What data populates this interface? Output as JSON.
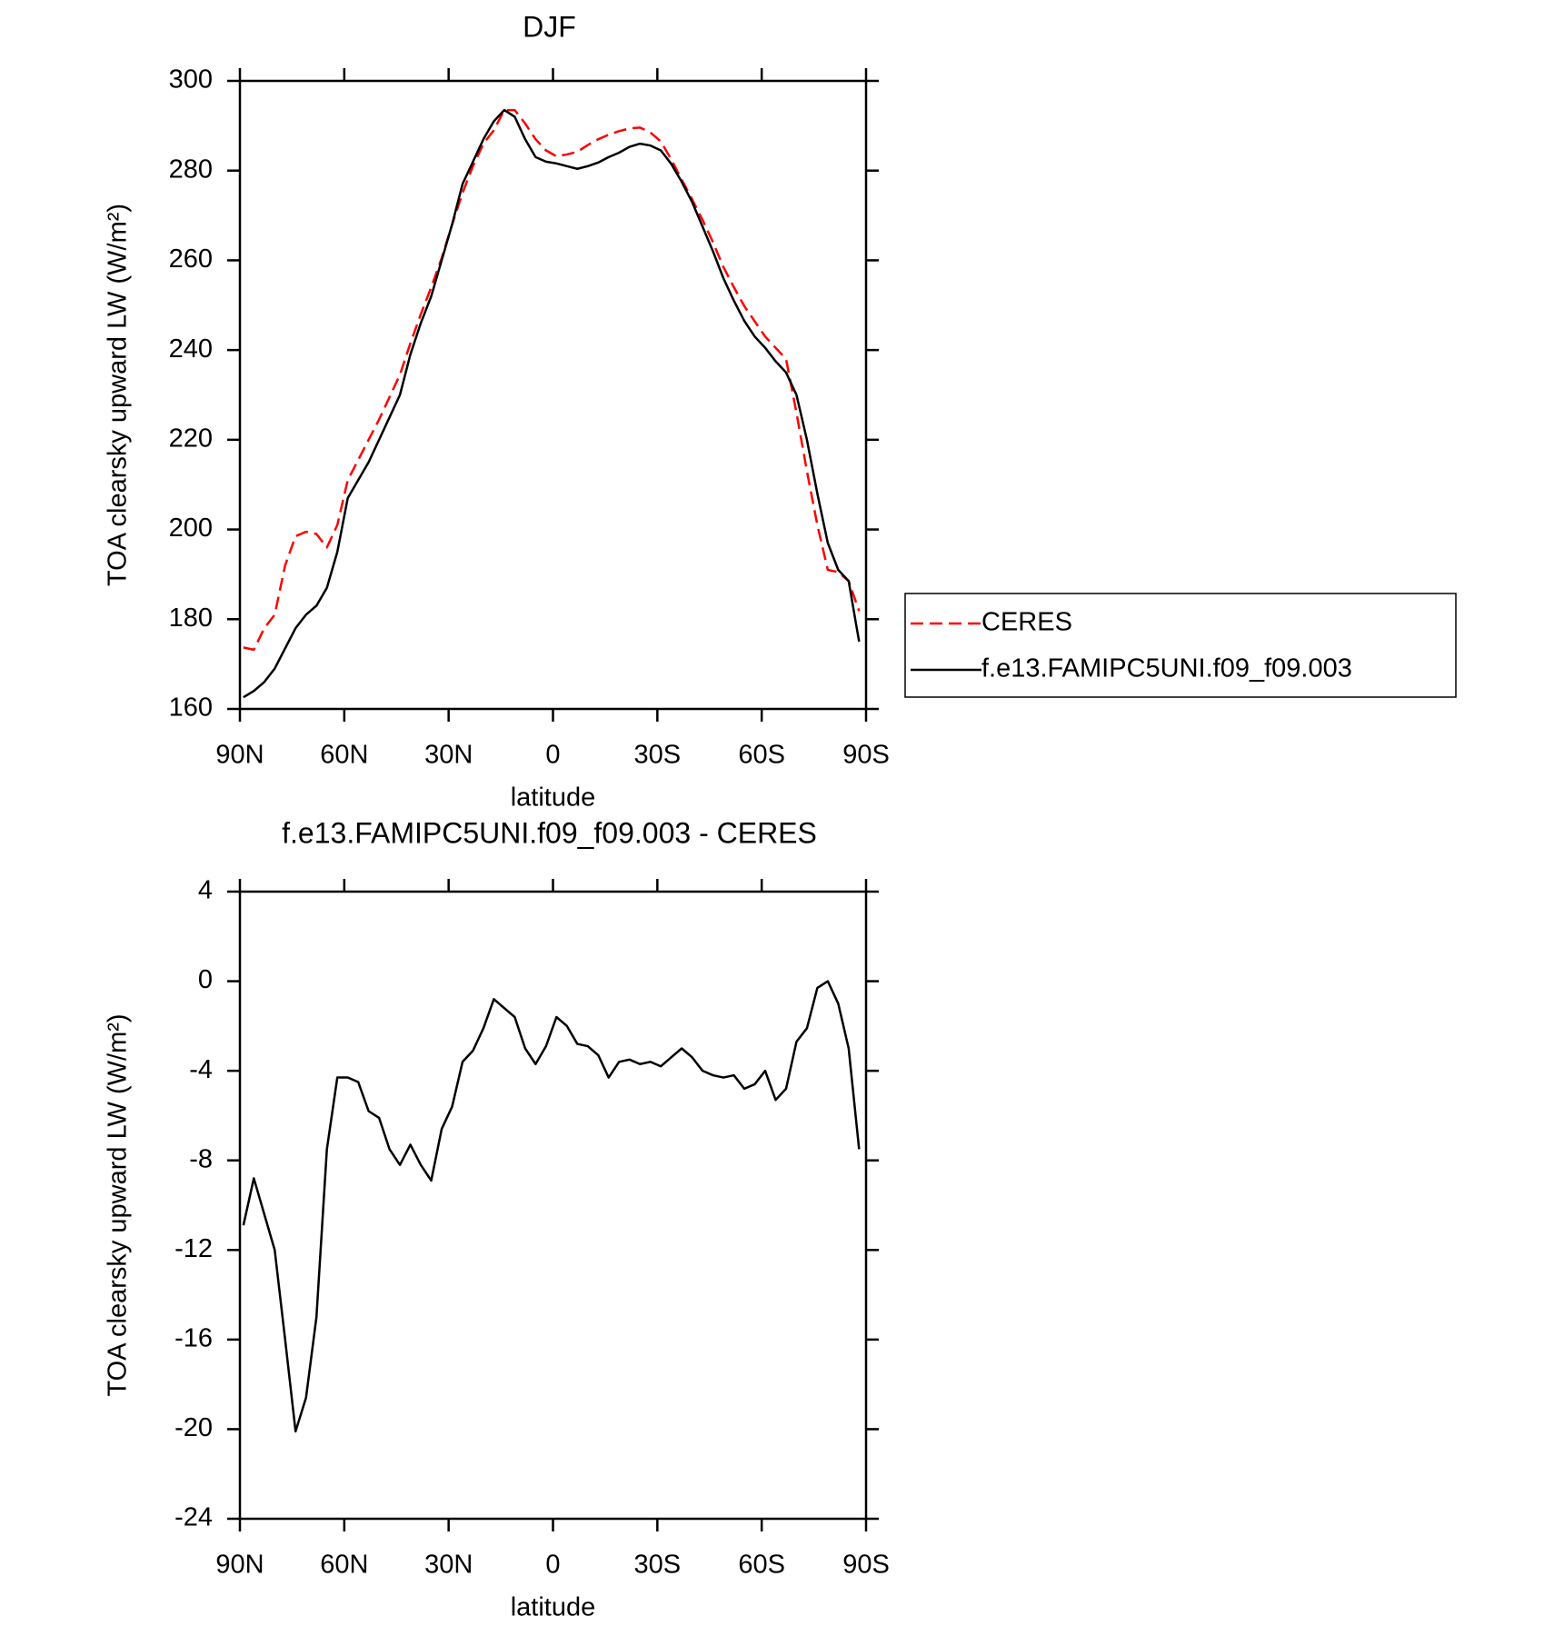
{
  "chart_data": [
    {
      "type": "line",
      "title": "DJF",
      "x_label": "latitude",
      "y_label": "TOA clearsky upward LW (W/m²)",
      "x": [
        89,
        86,
        83,
        80,
        77,
        74,
        71,
        68,
        65,
        62,
        59,
        56,
        53,
        50,
        47,
        44,
        41,
        38,
        35,
        32,
        29,
        26,
        23,
        20,
        17,
        14,
        11,
        8,
        5,
        2,
        -1,
        -4,
        -7,
        -10,
        -13,
        -16,
        -19,
        -22,
        -25,
        -28,
        -31,
        -34,
        -37,
        -40,
        -43,
        -46,
        -49,
        -52,
        -55,
        -58,
        -61,
        -64,
        -67,
        -70,
        -73,
        -76,
        -79,
        -82,
        -85,
        -88
      ],
      "xlim": [
        90,
        -90
      ],
      "xticks": [
        {
          "value": 90,
          "label": "90N"
        },
        {
          "value": 60,
          "label": "60N"
        },
        {
          "value": 30,
          "label": "30N"
        },
        0,
        {
          "value": -30,
          "label": "30S"
        },
        {
          "value": -60,
          "label": "60S"
        },
        {
          "value": -90,
          "label": "90S"
        }
      ],
      "ylim": [
        160,
        300
      ],
      "yticks": [
        160,
        180,
        200,
        220,
        240,
        260,
        280,
        300
      ],
      "legend": "outside-right",
      "series": [
        {
          "name": "CERES",
          "color": "#ff0000",
          "dash": "dashed",
          "values": [
            173.7,
            173.2,
            178,
            181,
            192,
            198.5,
            199.5,
            199,
            196,
            201,
            211,
            215.5,
            220,
            224.5,
            229.5,
            234.5,
            241.5,
            248,
            254,
            260.5,
            268,
            275,
            281,
            286,
            289,
            293.5,
            293.5,
            290.5,
            287,
            284.5,
            283.2,
            283.6,
            284.2,
            285.7,
            287,
            288,
            288.8,
            289.4,
            289.6,
            288.5,
            286.5,
            282.5,
            278,
            273.6,
            269,
            264,
            258.5,
            254,
            249.8,
            246.4,
            243,
            240.5,
            238,
            226,
            213,
            201,
            191,
            190.5,
            188.5,
            181.8
          ]
        },
        {
          "name": "f.e13.FAMIPC5UNI.f09_f09.003",
          "color": "#000000",
          "dash": "solid",
          "values": [
            162.6,
            164,
            166,
            169,
            173.5,
            178,
            181,
            183,
            187,
            195,
            207,
            211,
            215,
            220,
            225,
            230,
            239,
            246,
            252,
            260,
            268,
            277,
            282,
            287,
            291,
            293.5,
            292,
            287,
            283,
            282,
            281.6,
            281,
            280.4,
            281,
            281.8,
            283,
            284,
            285.3,
            286,
            285.6,
            284.5,
            281.5,
            277.5,
            273,
            267.5,
            262,
            256,
            251,
            246.5,
            243,
            240.5,
            237.5,
            235,
            230,
            220,
            208,
            197,
            191,
            188.5,
            175
          ]
        }
      ]
    },
    {
      "type": "line",
      "title": "f.e13.FAMIPC5UNI.f09_f09.003 - CERES",
      "x_label": "latitude",
      "y_label": "TOA clearsky upward LW (W/m²)",
      "x": [
        89,
        86,
        83,
        80,
        77,
        74,
        71,
        68,
        65,
        62,
        59,
        56,
        53,
        50,
        47,
        44,
        41,
        38,
        35,
        32,
        29,
        26,
        23,
        20,
        17,
        14,
        11,
        8,
        5,
        2,
        -1,
        -4,
        -7,
        -10,
        -13,
        -16,
        -19,
        -22,
        -25,
        -28,
        -31,
        -34,
        -37,
        -40,
        -43,
        -46,
        -49,
        -52,
        -55,
        -58,
        -61,
        -64,
        -67,
        -70,
        -73,
        -76,
        -79,
        -82,
        -85,
        -88
      ],
      "xlim": [
        90,
        -90
      ],
      "xticks": [
        {
          "value": 90,
          "label": "90N"
        },
        {
          "value": 60,
          "label": "60N"
        },
        {
          "value": 30,
          "label": "30N"
        },
        0,
        {
          "value": -30,
          "label": "30S"
        },
        {
          "value": -60,
          "label": "60S"
        },
        {
          "value": -90,
          "label": "90S"
        }
      ],
      "ylim": [
        -24,
        4
      ],
      "yticks": [
        -24,
        -20,
        -16,
        -12,
        -8,
        -4,
        0,
        4
      ],
      "color": "#000000",
      "values": [
        -10.9,
        -8.8,
        -10.4,
        -12,
        -16,
        -20.1,
        -18.6,
        -15,
        -7.5,
        -4.3,
        -4.3,
        -4.5,
        -5.8,
        -6.1,
        -7.5,
        -8.2,
        -7.3,
        -8.2,
        -8.9,
        -6.6,
        -5.6,
        -3.6,
        -3.1,
        -2.1,
        -0.8,
        -1.2,
        -1.6,
        -3,
        -3.7,
        -2.9,
        -1.6,
        -2,
        -2.8,
        -2.9,
        -3.3,
        -4.3,
        -3.6,
        -3.5,
        -3.7,
        -3.6,
        -3.8,
        -3.4,
        -3,
        -3.4,
        -4,
        -4.2,
        -4.3,
        -4.2,
        -4.8,
        -4.6,
        -4,
        -5.3,
        -4.8,
        -2.7,
        -2.1,
        -0.3,
        0,
        -1,
        -3,
        -7.5
      ]
    }
  ]
}
